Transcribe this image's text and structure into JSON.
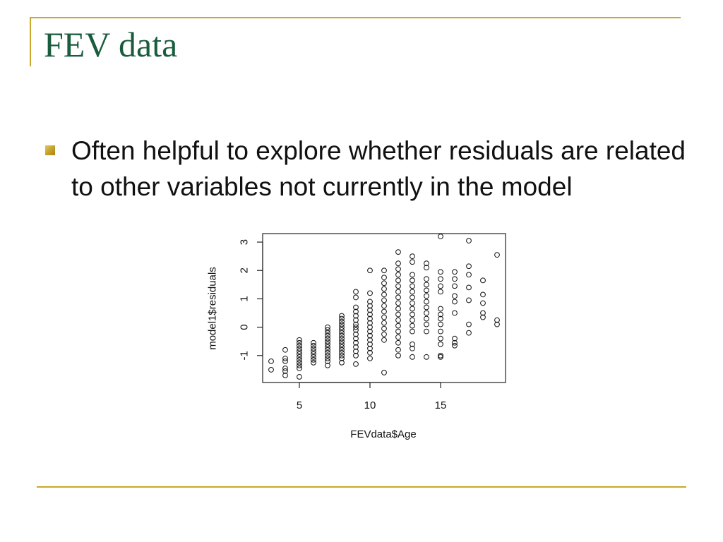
{
  "slide": {
    "title": "FEV data",
    "bullet": "Often helpful to explore whether residuals are related to other variables not currently in the model",
    "accent_color": "#c9a82a",
    "title_color": "#1a5d3e"
  },
  "chart_data": {
    "type": "scatter",
    "xlabel": "FEVdata$Age",
    "ylabel": "model1$residuals",
    "xlim": [
      2.4,
      19.6
    ],
    "ylim": [
      -1.95,
      3.3
    ],
    "xticks": [
      5,
      10,
      15
    ],
    "yticks": [
      -1,
      0,
      1,
      2,
      3
    ],
    "grid": false,
    "marker": "open-circle",
    "points": [
      [
        3,
        -1.2
      ],
      [
        3,
        -1.5
      ],
      [
        4,
        -0.8
      ],
      [
        4,
        -1.1
      ],
      [
        4,
        -1.2
      ],
      [
        4,
        -1.45
      ],
      [
        4,
        -1.55
      ],
      [
        4,
        -1.7
      ],
      [
        5,
        -0.45
      ],
      [
        5,
        -0.55
      ],
      [
        5,
        -0.65
      ],
      [
        5,
        -0.75
      ],
      [
        5,
        -0.85
      ],
      [
        5,
        -0.95
      ],
      [
        5,
        -1.05
      ],
      [
        5,
        -1.15
      ],
      [
        5,
        -1.25
      ],
      [
        5,
        -1.35
      ],
      [
        5,
        -1.45
      ],
      [
        5,
        -1.75
      ],
      [
        6,
        -0.55
      ],
      [
        6,
        -0.65
      ],
      [
        6,
        -0.75
      ],
      [
        6,
        -0.85
      ],
      [
        6,
        -0.95
      ],
      [
        6,
        -1.05
      ],
      [
        6,
        -1.15
      ],
      [
        6,
        -1.25
      ],
      [
        7,
        0.0
      ],
      [
        7,
        -0.1
      ],
      [
        7,
        -0.2
      ],
      [
        7,
        -0.3
      ],
      [
        7,
        -0.4
      ],
      [
        7,
        -0.5
      ],
      [
        7,
        -0.6
      ],
      [
        7,
        -0.7
      ],
      [
        7,
        -0.8
      ],
      [
        7,
        -0.9
      ],
      [
        7,
        -1.0
      ],
      [
        7,
        -1.1
      ],
      [
        7,
        -1.2
      ],
      [
        7,
        -1.35
      ],
      [
        8,
        0.4
      ],
      [
        8,
        0.3
      ],
      [
        8,
        0.2
      ],
      [
        8,
        0.1
      ],
      [
        8,
        0.0
      ],
      [
        8,
        -0.1
      ],
      [
        8,
        -0.2
      ],
      [
        8,
        -0.3
      ],
      [
        8,
        -0.4
      ],
      [
        8,
        -0.5
      ],
      [
        8,
        -0.6
      ],
      [
        8,
        -0.7
      ],
      [
        8,
        -0.8
      ],
      [
        8,
        -0.9
      ],
      [
        8,
        -1.0
      ],
      [
        8,
        -1.1
      ],
      [
        8,
        -1.25
      ],
      [
        9,
        1.25
      ],
      [
        9,
        1.05
      ],
      [
        9,
        0.7
      ],
      [
        9,
        0.55
      ],
      [
        9,
        0.4
      ],
      [
        9,
        0.25
      ],
      [
        9,
        0.1
      ],
      [
        9,
        0.0
      ],
      [
        9,
        -0.1
      ],
      [
        9,
        -0.25
      ],
      [
        9,
        -0.4
      ],
      [
        9,
        -0.55
      ],
      [
        9,
        -0.7
      ],
      [
        9,
        -0.85
      ],
      [
        9,
        -1.0
      ],
      [
        9,
        -1.3
      ],
      [
        10,
        2.0
      ],
      [
        10,
        1.2
      ],
      [
        10,
        0.9
      ],
      [
        10,
        0.75
      ],
      [
        10,
        0.6
      ],
      [
        10,
        0.45
      ],
      [
        10,
        0.3
      ],
      [
        10,
        0.15
      ],
      [
        10,
        0.0
      ],
      [
        10,
        -0.15
      ],
      [
        10,
        -0.3
      ],
      [
        10,
        -0.45
      ],
      [
        10,
        -0.6
      ],
      [
        10,
        -0.75
      ],
      [
        10,
        -0.9
      ],
      [
        10,
        -1.1
      ],
      [
        11,
        2.0
      ],
      [
        11,
        1.75
      ],
      [
        11,
        1.55
      ],
      [
        11,
        1.35
      ],
      [
        11,
        1.15
      ],
      [
        11,
        0.95
      ],
      [
        11,
        0.75
      ],
      [
        11,
        0.55
      ],
      [
        11,
        0.35
      ],
      [
        11,
        0.15
      ],
      [
        11,
        -0.05
      ],
      [
        11,
        -0.25
      ],
      [
        11,
        -0.45
      ],
      [
        11,
        -1.6
      ],
      [
        12,
        2.65
      ],
      [
        12,
        2.25
      ],
      [
        12,
        2.05
      ],
      [
        12,
        1.85
      ],
      [
        12,
        1.65
      ],
      [
        12,
        1.45
      ],
      [
        12,
        1.25
      ],
      [
        12,
        1.05
      ],
      [
        12,
        0.85
      ],
      [
        12,
        0.65
      ],
      [
        12,
        0.45
      ],
      [
        12,
        0.25
      ],
      [
        12,
        0.05
      ],
      [
        12,
        -0.15
      ],
      [
        12,
        -0.35
      ],
      [
        12,
        -0.55
      ],
      [
        12,
        -0.8
      ],
      [
        12,
        -1.0
      ],
      [
        13,
        2.5
      ],
      [
        13,
        2.3
      ],
      [
        13,
        1.85
      ],
      [
        13,
        1.65
      ],
      [
        13,
        1.45
      ],
      [
        13,
        1.25
      ],
      [
        13,
        1.05
      ],
      [
        13,
        0.85
      ],
      [
        13,
        0.65
      ],
      [
        13,
        0.45
      ],
      [
        13,
        0.25
      ],
      [
        13,
        0.05
      ],
      [
        13,
        -0.15
      ],
      [
        13,
        -0.6
      ],
      [
        13,
        -0.75
      ],
      [
        13,
        -1.05
      ],
      [
        14,
        2.25
      ],
      [
        14,
        2.1
      ],
      [
        14,
        1.7
      ],
      [
        14,
        1.5
      ],
      [
        14,
        1.3
      ],
      [
        14,
        1.1
      ],
      [
        14,
        0.9
      ],
      [
        14,
        0.7
      ],
      [
        14,
        0.5
      ],
      [
        14,
        0.3
      ],
      [
        14,
        0.1
      ],
      [
        14,
        -0.15
      ],
      [
        14,
        -1.05
      ],
      [
        15,
        3.2
      ],
      [
        15,
        1.95
      ],
      [
        15,
        1.7
      ],
      [
        15,
        1.45
      ],
      [
        15,
        1.25
      ],
      [
        15,
        0.65
      ],
      [
        15,
        0.45
      ],
      [
        15,
        0.3
      ],
      [
        15,
        0.1
      ],
      [
        15,
        -0.15
      ],
      [
        15,
        -0.4
      ],
      [
        15,
        -0.6
      ],
      [
        15,
        -1.0
      ],
      [
        15,
        -1.05
      ],
      [
        16,
        1.95
      ],
      [
        16,
        1.7
      ],
      [
        16,
        1.45
      ],
      [
        16,
        1.1
      ],
      [
        16,
        0.9
      ],
      [
        16,
        0.5
      ],
      [
        16,
        -0.4
      ],
      [
        16,
        -0.55
      ],
      [
        16,
        -0.65
      ],
      [
        17,
        3.05
      ],
      [
        17,
        2.15
      ],
      [
        17,
        1.85
      ],
      [
        17,
        1.4
      ],
      [
        17,
        0.95
      ],
      [
        17,
        0.1
      ],
      [
        17,
        -0.2
      ],
      [
        18,
        1.65
      ],
      [
        18,
        1.15
      ],
      [
        18,
        0.85
      ],
      [
        18,
        0.5
      ],
      [
        18,
        0.35
      ],
      [
        19,
        2.55
      ],
      [
        19,
        0.25
      ],
      [
        19,
        0.1
      ]
    ]
  }
}
